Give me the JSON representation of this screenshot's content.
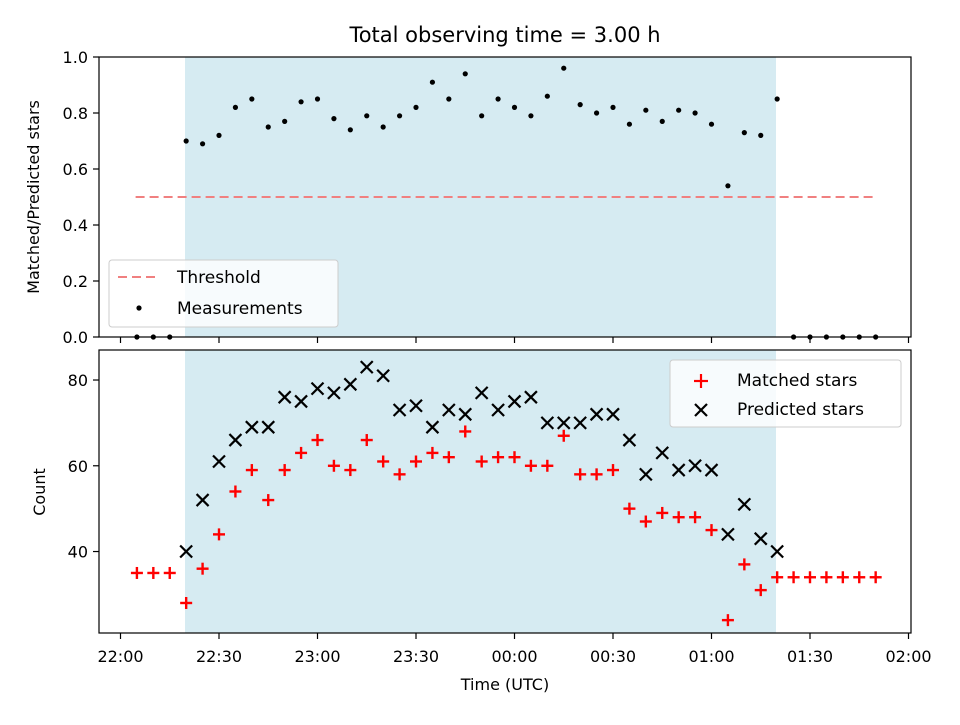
{
  "figure": {
    "title": "Total observing time = 3.00 h",
    "xlabel": "Time (UTC)",
    "x_ticks": [
      "22:00",
      "22:30",
      "23:00",
      "23:30",
      "00:00",
      "00:30",
      "01:00",
      "01:30",
      "02:00"
    ],
    "colors": {
      "shade": "#add8e6",
      "threshold": "#f08080",
      "matched": "#ff0000",
      "predicted": "#000000",
      "measurement": "#000000"
    }
  },
  "chart_data": [
    {
      "type": "scatter",
      "panel": "top",
      "ylabel": "Matched/Predicted stars",
      "ylim": [
        0.0,
        1.0
      ],
      "y_ticks": [
        "0.0",
        "0.2",
        "0.4",
        "0.6",
        "0.8",
        "1.0"
      ],
      "x_range": [
        "22:00",
        "02:00"
      ],
      "observing_window": [
        "22:20",
        "01:20"
      ],
      "legend": {
        "placement": "lower-left",
        "entries": [
          "Threshold",
          "Measurements"
        ]
      },
      "threshold": {
        "name": "Threshold",
        "value": 0.5,
        "x_start": "22:05",
        "x_end": "01:50"
      },
      "series": [
        {
          "name": "Measurements",
          "x": [
            "22:05",
            "22:10",
            "22:15",
            "22:20",
            "22:25",
            "22:30",
            "22:35",
            "22:40",
            "22:45",
            "22:50",
            "22:55",
            "23:00",
            "23:05",
            "23:10",
            "23:15",
            "23:20",
            "23:25",
            "23:30",
            "23:35",
            "23:40",
            "23:45",
            "23:50",
            "23:55",
            "00:00",
            "00:05",
            "00:10",
            "00:15",
            "00:20",
            "00:25",
            "00:30",
            "00:35",
            "00:40",
            "00:45",
            "00:50",
            "00:55",
            "01:00",
            "01:05",
            "01:10",
            "01:15",
            "01:20",
            "01:25",
            "01:30",
            "01:35",
            "01:40",
            "01:45",
            "01:50"
          ],
          "values": [
            0.0,
            0.0,
            0.0,
            0.7,
            0.69,
            0.72,
            0.82,
            0.85,
            0.75,
            0.77,
            0.84,
            0.85,
            0.78,
            0.74,
            0.79,
            0.75,
            0.79,
            0.82,
            0.91,
            0.85,
            0.94,
            0.79,
            0.85,
            0.82,
            0.79,
            0.86,
            0.96,
            0.83,
            0.8,
            0.82,
            0.76,
            0.81,
            0.77,
            0.81,
            0.8,
            0.76,
            0.54,
            0.73,
            0.72,
            0.85,
            0.0,
            0.0,
            0.0,
            0.0,
            0.0,
            0.0
          ]
        }
      ]
    },
    {
      "type": "scatter",
      "panel": "bottom",
      "ylabel": "Count",
      "ylim": [
        21,
        87
      ],
      "y_ticks": [
        "40",
        "60",
        "80"
      ],
      "x_range": [
        "22:00",
        "02:00"
      ],
      "observing_window": [
        "22:20",
        "01:20"
      ],
      "legend": {
        "placement": "upper-right",
        "entries": [
          "Matched stars",
          "Predicted stars"
        ]
      },
      "series": [
        {
          "name": "Matched stars",
          "marker": "plus",
          "x": [
            "22:05",
            "22:10",
            "22:15",
            "22:20",
            "22:25",
            "22:30",
            "22:35",
            "22:40",
            "22:45",
            "22:50",
            "22:55",
            "23:00",
            "23:05",
            "23:10",
            "23:15",
            "23:20",
            "23:25",
            "23:30",
            "23:35",
            "23:40",
            "23:45",
            "23:50",
            "23:55",
            "00:00",
            "00:05",
            "00:10",
            "00:15",
            "00:20",
            "00:25",
            "00:30",
            "00:35",
            "00:40",
            "00:45",
            "00:50",
            "00:55",
            "01:00",
            "01:05",
            "01:10",
            "01:15",
            "01:20",
            "01:25",
            "01:30",
            "01:35",
            "01:40",
            "01:45",
            "01:50"
          ],
          "values": [
            35,
            35,
            35,
            28,
            36,
            44,
            54,
            59,
            52,
            59,
            63,
            66,
            60,
            59,
            66,
            61,
            58,
            61,
            63,
            62,
            68,
            61,
            62,
            62,
            60,
            60,
            67,
            58,
            58,
            59,
            50,
            47,
            49,
            48,
            48,
            45,
            24,
            37,
            31,
            34,
            34,
            34,
            34,
            34,
            34,
            34
          ]
        },
        {
          "name": "Predicted stars",
          "marker": "x",
          "x": [
            "22:20",
            "22:25",
            "22:30",
            "22:35",
            "22:40",
            "22:45",
            "22:50",
            "22:55",
            "23:00",
            "23:05",
            "23:10",
            "23:15",
            "23:20",
            "23:25",
            "23:30",
            "23:35",
            "23:40",
            "23:45",
            "23:50",
            "23:55",
            "00:00",
            "00:05",
            "00:10",
            "00:15",
            "00:20",
            "00:25",
            "00:30",
            "00:35",
            "00:40",
            "00:45",
            "00:50",
            "00:55",
            "01:00",
            "01:05",
            "01:10",
            "01:15",
            "01:20"
          ],
          "values": [
            40,
            52,
            61,
            66,
            69,
            69,
            76,
            75,
            78,
            77,
            79,
            83,
            81,
            73,
            74,
            69,
            73,
            72,
            77,
            73,
            75,
            76,
            70,
            70,
            70,
            72,
            72,
            66,
            58,
            63,
            59,
            60,
            59,
            44,
            51,
            43,
            40
          ]
        }
      ]
    }
  ]
}
